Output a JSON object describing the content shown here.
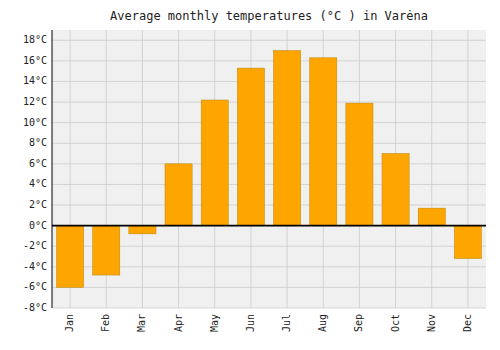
{
  "chart_data": {
    "type": "bar",
    "title": "Average monthly temperatures (°C ) in Varėna",
    "categories": [
      "Jan",
      "Feb",
      "Mar",
      "Apr",
      "May",
      "Jun",
      "Jul",
      "Aug",
      "Sep",
      "Oct",
      "Nov",
      "Dec"
    ],
    "values": [
      -6.0,
      -4.8,
      -0.8,
      6.0,
      12.2,
      15.3,
      17.0,
      16.3,
      11.9,
      7.0,
      1.7,
      -3.2
    ],
    "color": "#FFA500",
    "ylim": [
      -8,
      19
    ],
    "yticks": [
      {
        "value": -8,
        "label": "-8°C"
      },
      {
        "value": -6,
        "label": "-6°C"
      },
      {
        "value": -4,
        "label": "-4°C"
      },
      {
        "value": -2,
        "label": "-2°C"
      },
      {
        "value": 0,
        "label": "0°C"
      },
      {
        "value": 2,
        "label": "2°C"
      },
      {
        "value": 4,
        "label": "4°C"
      },
      {
        "value": 6,
        "label": "6°C"
      },
      {
        "value": 8,
        "label": "8°C"
      },
      {
        "value": 10,
        "label": "10°C"
      },
      {
        "value": 12,
        "label": "12°C"
      },
      {
        "value": 14,
        "label": "14°C"
      },
      {
        "value": 16,
        "label": "16°C"
      },
      {
        "value": 18,
        "label": "18°C"
      }
    ],
    "grid": true
  }
}
